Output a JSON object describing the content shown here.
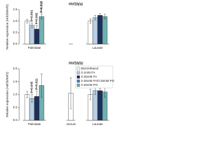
{
  "chart_data": [
    {
      "type": "bar",
      "title": "Hnf1b(a)",
      "y_label": "Relative expression (Hnf1b/Eef2)",
      "categories": [
        "Palmitate",
        null,
        "Laurate"
      ],
      "ylim": [
        0,
        1.5
      ],
      "yticks": [
        {
          "value": 0,
          "label": "0.0"
        },
        0.5,
        {
          "value": 1,
          "label": "1.0"
        },
        1.5
      ],
      "annotations": [
        "P=0.001",
        "P=0.002",
        "P=0.018",
        "P=0.018"
      ],
      "series": [
        {
          "name": "BSA/ethanol",
          "color": "#ffffff",
          "values": [
            1.0,
            null,
            1.0
          ],
          "errors": [
            0.08,
            null,
            0.1
          ]
        },
        {
          "name": "0.1mM FA",
          "color": "#b8cfe4",
          "values": [
            0.82,
            null,
            1.15
          ],
          "errors": [
            0.1,
            null,
            0.1
          ]
        },
        {
          "name": "0.25mM FA",
          "color": "#1f2f5c",
          "values": [
            0.65,
            null,
            1.25
          ],
          "errors": [
            0.15,
            null,
            0.08
          ]
        },
        {
          "name": "0.25mM FA/0.25mM PO",
          "color": "#4f7fb5",
          "values": [
            null,
            null,
            null
          ],
          "errors": [
            null,
            null,
            null
          ]
        },
        {
          "name": "0.25mM PO",
          "color": "#6fb0b0",
          "values": [
            1.2,
            null,
            1.2
          ],
          "errors": [
            0.1,
            null,
            0.1
          ]
        }
      ]
    },
    {
      "type": "bar",
      "title": "Hnf1b(b)",
      "y_label": "Relative expression (Hnf1b/Eef2)",
      "categories": [
        "Palmitate",
        "-Serum",
        "Laurate"
      ],
      "ylim": [
        0,
        2
      ],
      "yticks": [
        {
          "value": 0,
          "label": "0.0"
        },
        0.5,
        {
          "value": 1,
          "label": "1.0"
        },
        1.5,
        {
          "value": 2,
          "label": "2.0"
        }
      ],
      "annotations": [
        "P=0.045",
        "P=0.011"
      ],
      "legend": "upper right",
      "series": [
        {
          "name": "BSA/ethanol",
          "color": "#ffffff",
          "values": [
            1.0,
            1.05,
            1.0
          ],
          "errors": [
            0.12,
            0.6,
            0.2
          ]
        },
        {
          "name": "0.1mM FA",
          "color": "#b8cfe4",
          "values": [
            0.85,
            null,
            1.15
          ],
          "errors": [
            0.15,
            null,
            0.15
          ]
        },
        {
          "name": "0.25mM FA",
          "color": "#1f2f5c",
          "values": [
            0.93,
            null,
            1.15
          ],
          "errors": [
            0.2,
            null,
            0.1
          ]
        },
        {
          "name": "0.25mM FA/0.25mM PO",
          "color": "#4f7fb5",
          "values": [
            null,
            null,
            null
          ],
          "errors": [
            null,
            null,
            null
          ]
        },
        {
          "name": "0.25mM PO",
          "color": "#6fb0b0",
          "values": [
            1.35,
            null,
            1.1
          ],
          "errors": [
            0.45,
            null,
            0.2
          ]
        }
      ]
    }
  ]
}
